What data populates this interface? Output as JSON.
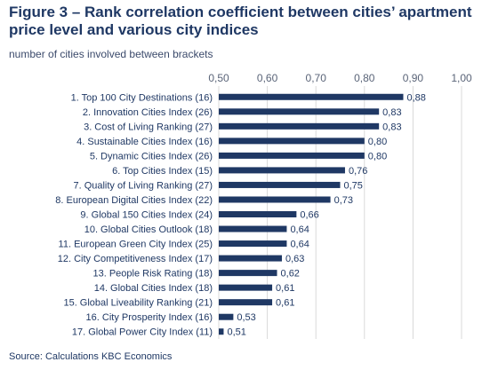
{
  "header": {
    "title": "Figure 3 – Rank correlation coefficient between cities’ apartment price level and various city indices",
    "subtitle": "number of cities involved between brackets"
  },
  "footer": {
    "source": "Source:  Calculations KBC Economics"
  },
  "colors": {
    "bar": "#1f3864",
    "grid": "#d9d9d9",
    "text": "#1f3864"
  },
  "chart_data": {
    "type": "bar",
    "orientation": "horizontal",
    "title": "Figure 3 – Rank correlation coefficient between cities’ apartment price level and various city indices",
    "subtitle": "number of cities involved between brackets",
    "categories": [
      "1. Top 100 City Destinations (16)",
      "2. Innovation Cities Index (26)",
      "3.  Cost of Living Ranking (27)",
      "4. Sustainable Cities Index (16)",
      "5. Dynamic Cities Index (26)",
      "6. Top Cities Index (15)",
      "7. Quality of Living Ranking (27)",
      "8. European Digital Cities Index (22)",
      "9. Global 150 Cities Index (24)",
      "10. Global Cities Outlook (18)",
      "11. European Green City Index (25)",
      "12. City Competitiveness Index (17)",
      "13. People Risk Rating (18)",
      "14. Global Cities Index (18)",
      "15. Global Liveability Ranking (21)",
      "16. City Prosperity Index (16)",
      "17. Global Power City Index (11)"
    ],
    "values": [
      0.88,
      0.83,
      0.83,
      0.8,
      0.8,
      0.76,
      0.75,
      0.73,
      0.66,
      0.64,
      0.64,
      0.63,
      0.62,
      0.61,
      0.61,
      0.53,
      0.51
    ],
    "value_labels": [
      "0,88",
      "0,83",
      "0,83",
      "0,80",
      "0,80",
      "0,76",
      "0,75",
      "0,73",
      "0,66",
      "0,64",
      "0,64",
      "0,63",
      "0,62",
      "0,61",
      "0,61",
      "0,53",
      "0,51"
    ],
    "xlim": [
      0.5,
      1.0
    ],
    "x_ticks": [
      0.5,
      0.6,
      0.7,
      0.8,
      0.9,
      1.0
    ],
    "x_tick_labels": [
      "0,50",
      "0,60",
      "0,70",
      "0,80",
      "0,90",
      "1,00"
    ],
    "axis_position": "top",
    "grid": true,
    "legend": "none"
  }
}
